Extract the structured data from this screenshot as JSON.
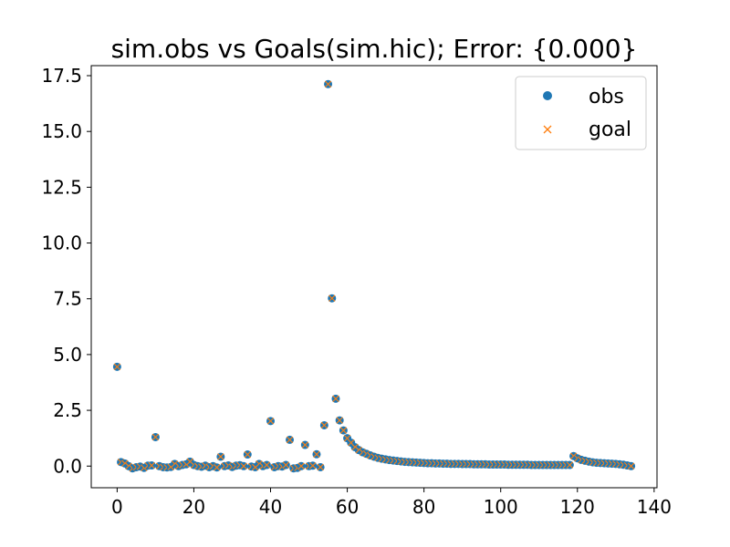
{
  "chart_data": {
    "type": "scatter",
    "title": "sim.obs vs Goals(sim.hic); Error: {0.000}",
    "xlabel": "",
    "ylabel": "",
    "xlim": [
      -6.75,
      140.75
    ],
    "ylim": [
      -0.97,
      17.95
    ],
    "xticks": [
      0,
      20,
      40,
      60,
      80,
      100,
      120,
      140
    ],
    "yticks": [
      0.0,
      2.5,
      5.0,
      7.5,
      10.0,
      12.5,
      15.0,
      17.5
    ],
    "ytick_labels": [
      "0.0",
      "2.5",
      "5.0",
      "7.5",
      "10.0",
      "12.5",
      "15.0",
      "17.5"
    ],
    "grid": false,
    "legend_position": "top-right",
    "series": [
      {
        "name": "obs",
        "marker": "circle",
        "color": "#1f77b4"
      },
      {
        "name": "goal",
        "marker": "x",
        "color": "#ff7f0e"
      }
    ],
    "x": [
      0,
      1,
      2,
      3,
      4,
      5,
      6,
      7,
      8,
      9,
      10,
      11,
      12,
      13,
      14,
      15,
      16,
      17,
      18,
      19,
      20,
      21,
      22,
      23,
      24,
      25,
      26,
      27,
      28,
      29,
      30,
      31,
      32,
      33,
      34,
      35,
      36,
      37,
      38,
      39,
      40,
      41,
      42,
      43,
      44,
      45,
      46,
      47,
      48,
      49,
      50,
      51,
      52,
      53,
      54,
      55,
      56,
      57,
      58,
      59,
      60,
      61,
      62,
      63,
      64,
      65,
      66,
      67,
      68,
      69,
      70,
      71,
      72,
      73,
      74,
      75,
      76,
      77,
      78,
      79,
      80,
      81,
      82,
      83,
      84,
      85,
      86,
      87,
      88,
      89,
      90,
      91,
      92,
      93,
      94,
      95,
      96,
      97,
      98,
      99,
      100,
      101,
      102,
      103,
      104,
      105,
      106,
      107,
      108,
      109,
      110,
      111,
      112,
      113,
      114,
      115,
      116,
      117,
      118,
      119,
      120,
      121,
      122,
      123,
      124,
      125,
      126,
      127,
      128,
      129,
      130,
      131,
      132,
      133,
      134
    ],
    "y": [
      4.45,
      0.18,
      0.12,
      0.0,
      -0.1,
      -0.05,
      -0.02,
      -0.08,
      0.02,
      0.03,
      1.3,
      0.0,
      -0.05,
      -0.06,
      -0.04,
      0.1,
      0.0,
      0.05,
      0.08,
      0.2,
      0.05,
      0.0,
      -0.03,
      0.02,
      -0.05,
      0.0,
      -0.06,
      0.42,
      0.0,
      0.03,
      -0.04,
      0.02,
      0.04,
      0.0,
      0.52,
      -0.02,
      -0.05,
      0.1,
      0.0,
      0.05,
      2.02,
      -0.05,
      0.0,
      -0.02,
      0.05,
      1.18,
      -0.1,
      -0.08,
      0.0,
      0.95,
      0.0,
      0.02,
      0.53,
      -0.05,
      1.83,
      17.12,
      7.52,
      3.02,
      2.05,
      1.6,
      1.25,
      1.05,
      0.85,
      0.72,
      0.62,
      0.55,
      0.48,
      0.42,
      0.37,
      0.33,
      0.3,
      0.27,
      0.25,
      0.23,
      0.21,
      0.19,
      0.18,
      0.17,
      0.16,
      0.15,
      0.14,
      0.13,
      0.13,
      0.12,
      0.12,
      0.11,
      0.11,
      0.1,
      0.1,
      0.1,
      0.09,
      0.09,
      0.09,
      0.08,
      0.08,
      0.08,
      0.08,
      0.07,
      0.07,
      0.07,
      0.07,
      0.07,
      0.06,
      0.06,
      0.06,
      0.06,
      0.06,
      0.06,
      0.05,
      0.05,
      0.05,
      0.05,
      0.05,
      0.05,
      0.05,
      0.05,
      0.05,
      0.05,
      0.05,
      0.45,
      0.35,
      0.28,
      0.24,
      0.2,
      0.17,
      0.15,
      0.14,
      0.13,
      0.12,
      0.11,
      0.1,
      0.08,
      0.06,
      0.03,
      0.0
    ]
  }
}
